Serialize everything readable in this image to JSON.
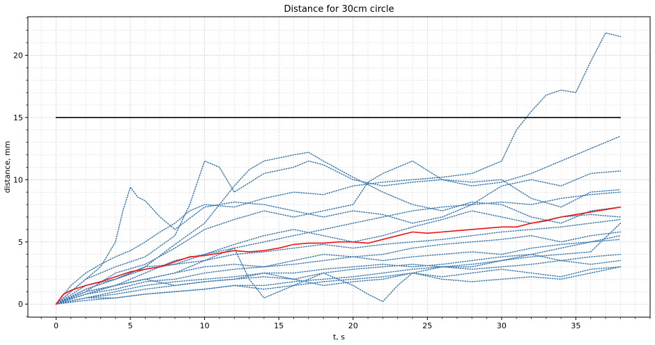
{
  "chart_data": {
    "type": "line",
    "title": "Distance for 30cm circle",
    "xlabel": "t, s",
    "ylabel": "distance, mm",
    "xlim": [
      -1.9,
      40.0
    ],
    "ylim": [
      -1.05,
      23.1
    ],
    "x_ticks": [
      0,
      5,
      10,
      15,
      20,
      25,
      30,
      35
    ],
    "y_ticks": [
      0,
      5,
      10,
      15,
      20
    ],
    "x_minor_step": 1,
    "y_minor_step": 1,
    "grid": true,
    "legend": "none",
    "colors": {
      "trials": "#3b78b0",
      "mean": "#ee1111",
      "threshold": "#000000",
      "grid": "#b5b5b5"
    },
    "series": [
      {
        "role": "threshold",
        "style": "solid",
        "x": [
          0,
          38
        ],
        "y": [
          15,
          15
        ]
      },
      {
        "role": "mean",
        "style": "solid",
        "x": [
          0,
          0.5,
          1,
          2,
          3,
          4,
          5,
          6,
          7,
          8,
          9,
          10,
          11,
          12,
          13,
          14,
          15,
          16,
          17,
          18,
          19,
          20,
          21,
          22,
          23,
          24,
          25,
          26,
          27,
          28,
          29,
          30,
          31,
          32,
          33,
          34,
          35,
          36,
          37,
          38
        ],
        "y": [
          0,
          0.8,
          1.1,
          1.5,
          1.8,
          2.2,
          2.6,
          2.8,
          3.0,
          3.4,
          3.8,
          3.9,
          4.1,
          4.3,
          4.2,
          4.3,
          4.5,
          4.8,
          4.9,
          4.9,
          5.0,
          5.0,
          4.9,
          5.2,
          5.5,
          5.8,
          5.7,
          5.8,
          5.9,
          6.0,
          6.1,
          6.2,
          6.2,
          6.5,
          6.7,
          7.0,
          7.2,
          7.4,
          7.6,
          7.8
        ]
      },
      {
        "role": "trial",
        "style": "dotted",
        "x": [
          0,
          1,
          2,
          3,
          4,
          5,
          6,
          7,
          8,
          9,
          10,
          12,
          14,
          16,
          18,
          20,
          22,
          24,
          26,
          28,
          30,
          31,
          32,
          33,
          34,
          35,
          36,
          37,
          38
        ],
        "y": [
          0,
          1.5,
          2.5,
          3.2,
          3.8,
          4.3,
          5.0,
          5.8,
          6.5,
          7.5,
          8.0,
          7.8,
          8.5,
          9.0,
          8.8,
          9.5,
          9.8,
          10.0,
          10.2,
          10.5,
          11.5,
          14.0,
          15.5,
          16.8,
          17.2,
          17.0,
          19.5,
          21.8,
          21.5
        ]
      },
      {
        "role": "trial",
        "style": "dotted",
        "x": [
          0,
          1,
          2,
          3,
          4,
          4.5,
          5,
          5.5,
          6,
          7,
          8,
          10,
          12,
          14,
          16,
          18,
          20,
          22,
          24,
          26,
          28,
          30,
          32,
          34,
          36,
          38
        ],
        "y": [
          0,
          1.0,
          2.0,
          3.0,
          5.0,
          7.5,
          9.4,
          8.6,
          8.3,
          7.0,
          6.0,
          7.8,
          8.2,
          8.0,
          7.5,
          7.0,
          7.5,
          7.2,
          6.5,
          7.0,
          8.0,
          9.5,
          10.0,
          9.5,
          10.5,
          10.7
        ]
      },
      {
        "role": "trial",
        "style": "dotted",
        "x": [
          0,
          2,
          4,
          6,
          8,
          9,
          10,
          11,
          12,
          14,
          16,
          17,
          18,
          20,
          22,
          24,
          26,
          28,
          30,
          32,
          34,
          36,
          38
        ],
        "y": [
          0,
          2.0,
          3.0,
          3.8,
          5.5,
          8.0,
          11.5,
          11.0,
          9.0,
          10.5,
          11.0,
          11.5,
          11.2,
          10.0,
          9.5,
          9.8,
          10.0,
          9.5,
          9.8,
          10.5,
          11.5,
          12.5,
          13.5
        ]
      },
      {
        "role": "trial",
        "style": "dotted",
        "x": [
          0,
          2,
          4,
          6,
          8,
          10,
          11,
          12,
          13,
          14,
          16,
          17,
          18,
          20,
          22,
          24,
          26,
          28,
          30,
          32,
          34,
          36,
          38
        ],
        "y": [
          0,
          1.2,
          2.0,
          3.0,
          4.8,
          6.5,
          8.0,
          9.5,
          10.8,
          11.5,
          12.0,
          12.2,
          11.5,
          10.2,
          9.0,
          8.0,
          7.5,
          8.2,
          8.0,
          7.0,
          6.5,
          7.5,
          7.8
        ]
      },
      {
        "role": "trial",
        "style": "dotted",
        "x": [
          0,
          2,
          4,
          6,
          8,
          10,
          12,
          14,
          16,
          18,
          20,
          21,
          22,
          23,
          24,
          26,
          28,
          30,
          32,
          34,
          36,
          38
        ],
        "y": [
          0,
          1.0,
          2.5,
          3.2,
          4.5,
          6.0,
          6.8,
          7.5,
          7.0,
          7.5,
          8.0,
          9.8,
          10.5,
          11.0,
          11.5,
          10.0,
          9.8,
          10.0,
          8.5,
          7.8,
          9.0,
          9.2
        ]
      },
      {
        "role": "trial",
        "style": "dotted",
        "x": [
          0,
          2,
          4,
          6,
          8,
          10,
          12,
          14,
          16,
          18,
          20,
          22,
          24,
          26,
          28,
          30,
          32,
          34,
          36,
          38
        ],
        "y": [
          0,
          1.5,
          2.0,
          3.0,
          3.2,
          4.0,
          4.5,
          5.0,
          5.5,
          6.0,
          6.5,
          7.0,
          7.5,
          7.8,
          8.0,
          8.2,
          8.0,
          8.5,
          8.8,
          9.0
        ]
      },
      {
        "role": "trial",
        "style": "dotted",
        "x": [
          0,
          2,
          4,
          6,
          8,
          10,
          12,
          14,
          16,
          18,
          20,
          22,
          24,
          26,
          28,
          30,
          32,
          34,
          36,
          38
        ],
        "y": [
          0,
          0.8,
          1.5,
          2.5,
          3.5,
          4.0,
          4.8,
          5.5,
          6.0,
          5.5,
          5.0,
          5.5,
          6.2,
          6.8,
          7.5,
          7.0,
          6.5,
          7.0,
          7.2,
          7.0
        ]
      },
      {
        "role": "trial",
        "style": "dotted",
        "x": [
          0,
          2,
          4,
          6,
          8,
          10,
          12,
          14,
          16,
          18,
          20,
          22,
          24,
          26,
          28,
          30,
          32,
          34,
          36,
          38
        ],
        "y": [
          0,
          1.2,
          2.0,
          2.8,
          3.2,
          3.5,
          4.0,
          4.2,
          4.5,
          4.8,
          4.5,
          4.8,
          5.0,
          5.2,
          5.5,
          5.8,
          6.0,
          6.2,
          6.5,
          6.8
        ]
      },
      {
        "role": "trial",
        "style": "dotted",
        "x": [
          0,
          2,
          4,
          6,
          8,
          10,
          12,
          14,
          16,
          18,
          20,
          22,
          24,
          26,
          28,
          30,
          32,
          34,
          36,
          38
        ],
        "y": [
          0,
          1.0,
          1.5,
          2.0,
          2.5,
          3.0,
          3.2,
          3.0,
          3.5,
          4.0,
          3.8,
          4.0,
          4.5,
          4.8,
          5.0,
          5.2,
          5.5,
          5.0,
          5.5,
          5.8
        ]
      },
      {
        "role": "trial",
        "style": "dotted",
        "x": [
          0,
          2,
          4,
          6,
          8,
          10,
          12,
          14,
          16,
          18,
          20,
          22,
          24,
          26,
          28,
          30,
          32,
          34,
          36,
          38
        ],
        "y": [
          0,
          0.8,
          1.2,
          1.8,
          2.0,
          2.5,
          2.8,
          3.0,
          3.2,
          3.5,
          3.8,
          3.5,
          3.8,
          4.0,
          4.2,
          4.0,
          4.5,
          4.8,
          5.0,
          5.2
        ]
      },
      {
        "role": "trial",
        "style": "dotted",
        "x": [
          0,
          2,
          4,
          6,
          8,
          10,
          12,
          14,
          16,
          18,
          20,
          22,
          24,
          26,
          28,
          30,
          32,
          34,
          36,
          38
        ],
        "y": [
          0,
          0.5,
          1.0,
          1.5,
          1.8,
          2.0,
          2.2,
          2.5,
          2.5,
          2.8,
          3.0,
          3.2,
          3.0,
          3.2,
          3.5,
          3.8,
          4.0,
          3.5,
          3.8,
          4.0
        ]
      },
      {
        "role": "trial",
        "style": "dotted",
        "x": [
          0,
          2,
          4,
          6,
          8,
          10,
          12,
          14,
          16,
          18,
          20,
          22,
          24,
          26,
          28,
          30,
          32,
          34,
          36,
          38
        ],
        "y": [
          0,
          0.5,
          0.8,
          1.2,
          1.5,
          1.8,
          2.0,
          2.2,
          2.0,
          2.5,
          2.8,
          3.0,
          3.2,
          3.0,
          2.8,
          3.0,
          3.2,
          3.5,
          3.2,
          3.5
        ]
      },
      {
        "role": "trial",
        "style": "dotted",
        "x": [
          0,
          2,
          4,
          6,
          8,
          10,
          12,
          14,
          16,
          18,
          20,
          22,
          24,
          26,
          28,
          30,
          32,
          34,
          36,
          38
        ],
        "y": [
          0,
          0.5,
          0.5,
          0.8,
          1.0,
          1.2,
          1.5,
          1.2,
          1.5,
          1.8,
          2.0,
          2.2,
          2.5,
          2.2,
          2.5,
          2.8,
          2.5,
          2.2,
          2.8,
          3.0
        ]
      },
      {
        "role": "trial",
        "style": "dotted",
        "x": [
          0,
          2,
          4,
          6,
          8,
          10,
          12,
          14,
          16,
          18,
          20,
          22,
          24,
          26,
          28,
          30,
          32,
          34,
          36,
          38
        ],
        "y": [
          0,
          0.8,
          1.5,
          2.0,
          1.5,
          1.8,
          2.0,
          2.5,
          2.0,
          1.5,
          1.8,
          2.0,
          2.5,
          2.0,
          1.8,
          2.0,
          2.2,
          2.0,
          2.5,
          3.0
        ]
      },
      {
        "role": "trial",
        "style": "dotted",
        "x": [
          0,
          2,
          4,
          6,
          8,
          10,
          12,
          13,
          14,
          16,
          18,
          20,
          21,
          22,
          23,
          24,
          26,
          28,
          30,
          32,
          34,
          36,
          38
        ],
        "y": [
          0,
          1.0,
          1.5,
          2.0,
          2.5,
          3.5,
          4.5,
          2.0,
          0.5,
          1.5,
          2.5,
          1.5,
          0.8,
          0.2,
          1.5,
          2.5,
          3.0,
          3.0,
          3.5,
          4.0,
          4.5,
          5.0,
          5.5
        ]
      },
      {
        "role": "trial",
        "style": "dotted",
        "x": [
          0,
          2,
          4,
          6,
          8,
          10,
          12,
          14,
          16,
          18,
          20,
          22,
          24,
          26,
          28,
          30,
          32,
          34,
          36,
          38
        ],
        "y": [
          0,
          0.3,
          0.5,
          0.8,
          1.0,
          1.2,
          1.5,
          1.5,
          1.8,
          2.0,
          2.2,
          2.5,
          2.8,
          3.0,
          3.2,
          3.5,
          3.8,
          4.0,
          4.2,
          6.5
        ]
      }
    ]
  }
}
